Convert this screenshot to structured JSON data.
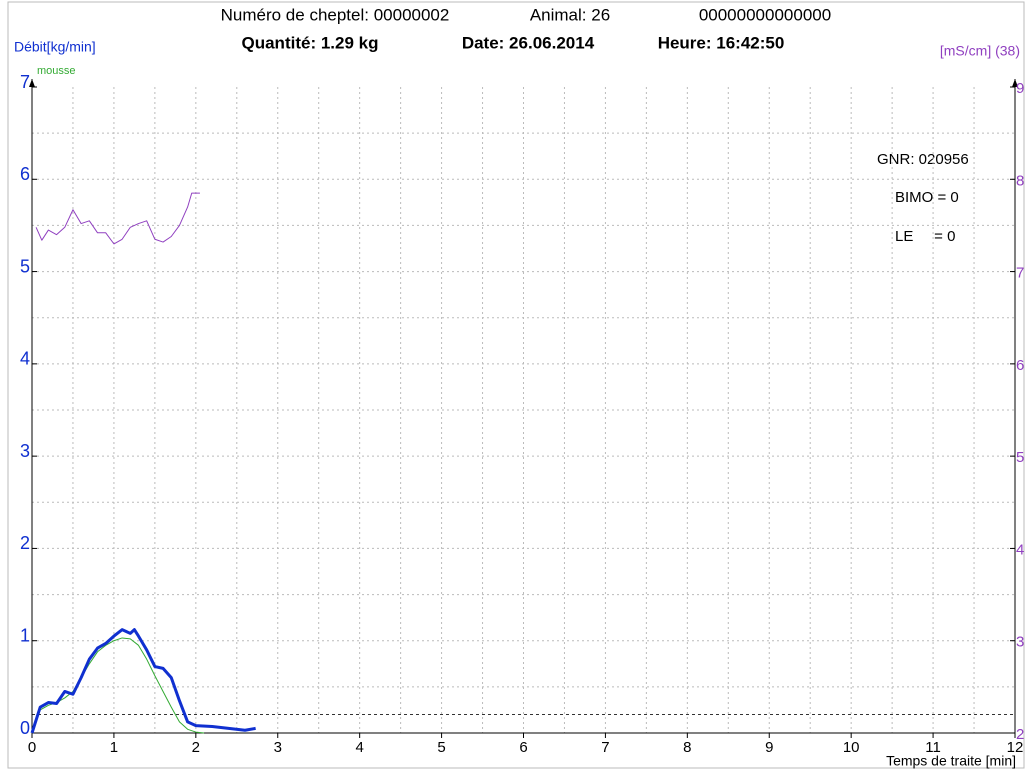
{
  "chart_data": {
    "type": "line",
    "title_parts": [
      "Numéro de cheptel: 00000002",
      "Animal: 26",
      "00000000000000"
    ],
    "subtitle_parts": [
      "Quantité: 1.29 kg",
      "Date: 26.06.2014",
      "Heure: 16:42:50"
    ],
    "y_label": "Débit[kg/min]",
    "y2_label": "[mS/cm] (38)",
    "x_label": "Temps de traite [min]",
    "annotations": [
      "GNR: 020956",
      "BIMO = 0",
      "LE     = 0"
    ],
    "xlim": [
      0,
      12
    ],
    "ylim": [
      0,
      7
    ],
    "y2lim": [
      2,
      9
    ],
    "xticks": [
      0,
      1,
      2,
      3,
      4,
      5,
      6,
      7,
      8,
      9,
      10,
      11,
      12
    ],
    "yticks": [
      0,
      1,
      2,
      3,
      4,
      5,
      6,
      7
    ],
    "y2ticks": [
      2,
      3,
      4,
      5,
      6,
      7,
      8,
      9
    ],
    "xgrid": [
      0.5,
      1,
      1.5,
      2,
      2.5,
      3,
      3.5,
      4,
      4.5,
      5,
      5.5,
      6,
      6.5,
      7,
      7.5,
      8,
      8.5,
      9,
      9.5,
      10,
      10.5,
      11,
      11.5
    ],
    "ygrid": [
      0.5,
      1,
      1.5,
      2,
      2.5,
      3,
      3.5,
      4,
      4.5,
      5,
      5.5,
      6,
      6.5
    ],
    "grid": true,
    "reference_line": 0.2,
    "series": [
      {
        "name": "mousse",
        "color": "#33aa33",
        "width": 1,
        "x": [
          0,
          0.1,
          0.2,
          0.3,
          0.4,
          0.5,
          0.6,
          0.7,
          0.8,
          0.9,
          1.0,
          1.1,
          1.2,
          1.3,
          1.4,
          1.5,
          1.6,
          1.7,
          1.8,
          1.9,
          2.0,
          2.1
        ],
        "values": [
          0,
          0.25,
          0.3,
          0.33,
          0.38,
          0.45,
          0.6,
          0.75,
          0.88,
          0.95,
          1.0,
          1.03,
          1.02,
          0.95,
          0.8,
          0.62,
          0.45,
          0.28,
          0.12,
          0.04,
          0.01,
          0
        ]
      },
      {
        "name": null,
        "color": "#1030d0",
        "width": 3,
        "x": [
          0,
          0.1,
          0.2,
          0.3,
          0.4,
          0.5,
          0.6,
          0.7,
          0.8,
          0.9,
          1.0,
          1.1,
          1.2,
          1.25,
          1.3,
          1.4,
          1.5,
          1.6,
          1.7,
          1.8,
          1.9,
          2.0,
          2.2,
          2.4,
          2.6,
          2.73
        ],
        "values": [
          0,
          0.28,
          0.33,
          0.32,
          0.45,
          0.42,
          0.6,
          0.8,
          0.92,
          0.97,
          1.05,
          1.12,
          1.08,
          1.12,
          1.05,
          0.9,
          0.72,
          0.7,
          0.6,
          0.35,
          0.12,
          0.08,
          0.07,
          0.05,
          0.03,
          0.05
        ]
      },
      {
        "name": null,
        "color": "#9040c0",
        "width": 1,
        "axis": "y2",
        "x": [
          0.05,
          0.12,
          0.2,
          0.3,
          0.4,
          0.5,
          0.6,
          0.7,
          0.8,
          0.9,
          1.0,
          1.1,
          1.2,
          1.3,
          1.4,
          1.5,
          1.6,
          1.7,
          1.8,
          1.9,
          1.95,
          2.05
        ],
        "values": [
          7.48,
          7.34,
          7.45,
          7.4,
          7.48,
          7.67,
          7.52,
          7.55,
          7.42,
          7.42,
          7.3,
          7.35,
          7.48,
          7.52,
          7.55,
          7.35,
          7.32,
          7.38,
          7.5,
          7.7,
          7.85,
          7.85
        ]
      }
    ]
  }
}
